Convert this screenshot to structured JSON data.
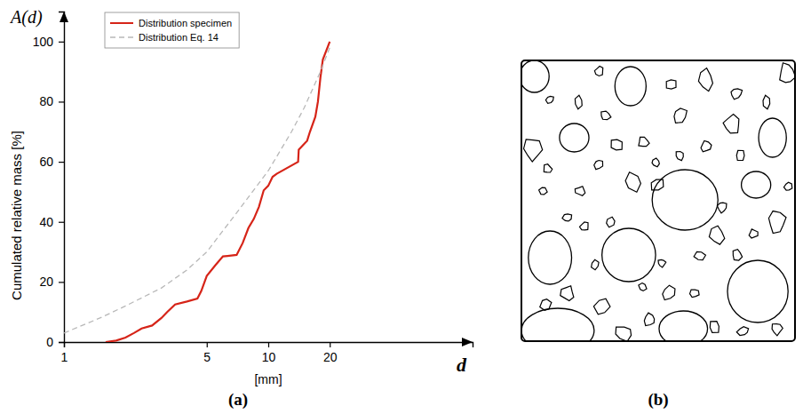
{
  "chart_data": {
    "type": "line",
    "panel_label": "(a)",
    "y_axis_symbol": "A(d)",
    "x_axis_symbol": "d",
    "y_label": "Cumulated relative mass [%]",
    "x_label": "[mm]",
    "log": "x",
    "grid": false,
    "legend": "upper left",
    "xlim": [
      1,
      100
    ],
    "xticks": [
      1,
      5,
      10,
      20
    ],
    "ylim": [
      0,
      110
    ],
    "yticks": [
      0,
      20,
      40,
      60,
      80,
      100
    ],
    "series": [
      {
        "name": "Distribution specimen",
        "color": "#d62418",
        "line_style": "solid",
        "x": [
          1.6,
          1.8,
          2.0,
          2.2,
          2.4,
          2.7,
          3.0,
          3.2,
          3.5,
          4.0,
          4.5,
          4.7,
          5.0,
          5.5,
          6.0,
          7.0,
          7.5,
          8.0,
          8.5,
          9.0,
          9.5,
          10,
          10.5,
          11,
          14,
          14.1,
          15.5,
          16,
          17,
          17.5,
          18,
          18.5,
          20
        ],
        "values": [
          0,
          0.5,
          1.5,
          3,
          4.5,
          5.5,
          8,
          10,
          12.5,
          13.5,
          14.5,
          17,
          22,
          25.5,
          28.5,
          29,
          33,
          38,
          41,
          45,
          50.5,
          52,
          55,
          56,
          60,
          64,
          67,
          70,
          75,
          80,
          88,
          94,
          100
        ]
      },
      {
        "name": "Distribution Eq. 14",
        "color": "#b8b8b8",
        "line_style": "dashed",
        "x": [
          1,
          1.5,
          2,
          3,
          4,
          5,
          7,
          10,
          13,
          15,
          18,
          20
        ],
        "values": [
          3,
          8,
          12,
          18,
          24,
          30,
          43,
          57,
          70,
          78,
          90,
          98
        ]
      }
    ]
  },
  "diagram": {
    "panel_label": "(b)"
  }
}
